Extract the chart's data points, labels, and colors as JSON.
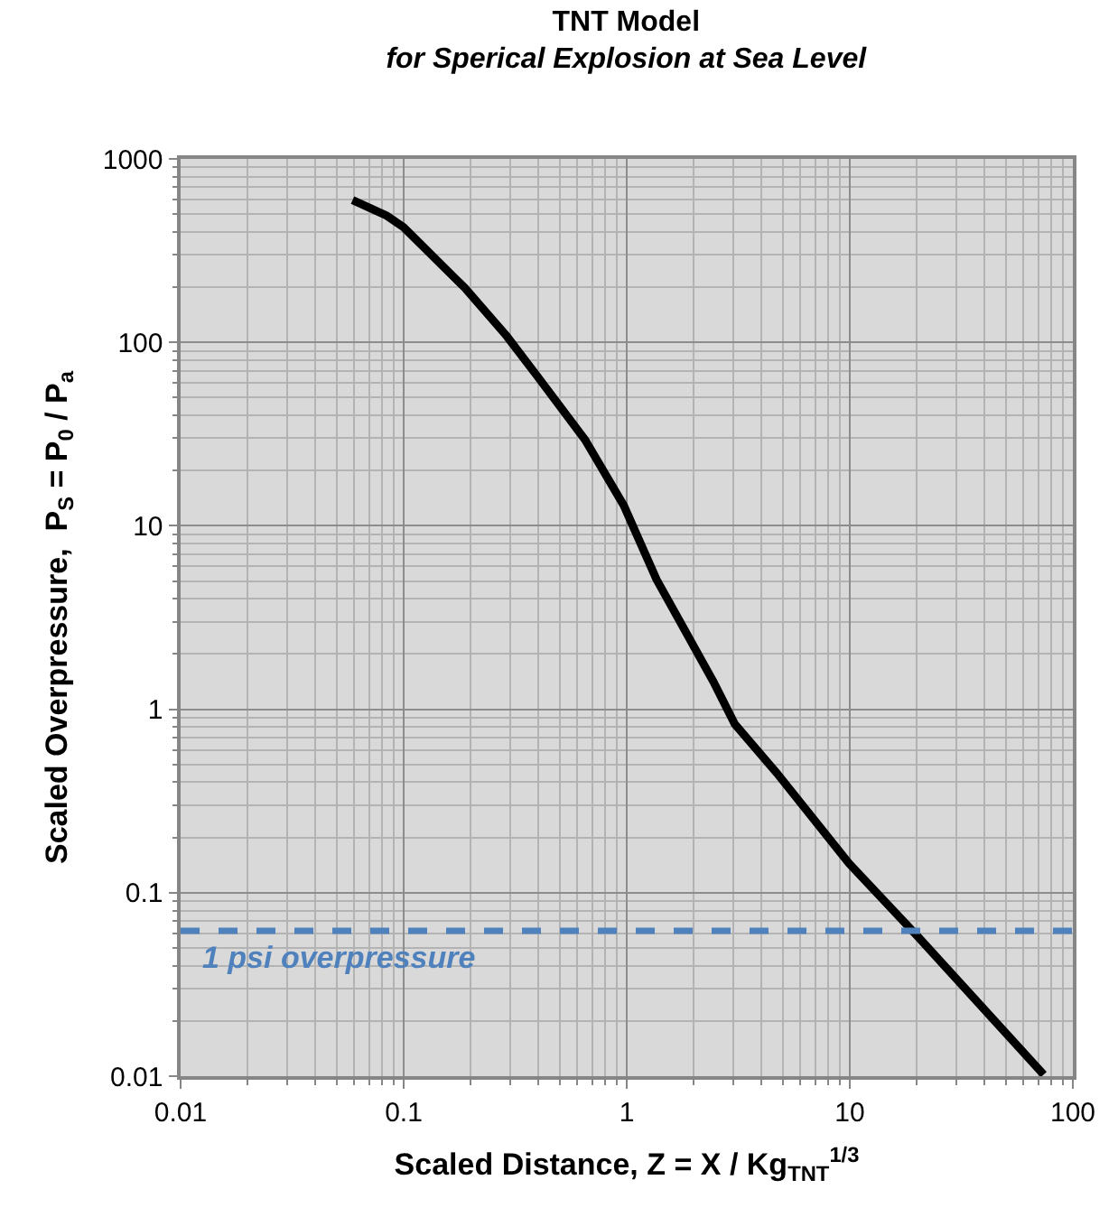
{
  "chart_data": {
    "type": "line",
    "title": "TNT Model",
    "subtitle": "for Sperical Explosion at Sea Level",
    "xlabel": "Scaled Distance, Z = X / Kg$_{TNT}$$^{1/3}$",
    "ylabel": "Scaled Overpressure,  P$_{S}$ = P$_{0}$ / P$_{a}$",
    "log": "xy",
    "grid": true,
    "marker": "none",
    "line_style": "solid",
    "xlim": [
      0.01,
      100
    ],
    "ylim": [
      0.01,
      1000
    ],
    "xticks": [
      0.01,
      0.1,
      1,
      10,
      100
    ],
    "yticks": [
      0.01,
      0.1,
      1,
      10,
      100,
      1000
    ],
    "series": [
      {
        "color": "#000000",
        "x": [
          0.059,
          0.084,
          0.1,
          0.188,
          0.29,
          0.395,
          0.65,
          0.97,
          1.36,
          2.45,
          3.05,
          4.7,
          9.9,
          20.1,
          74
        ],
        "values": [
          596,
          490,
          424,
          198,
          108,
          66,
          29.5,
          12.9,
          5.1,
          1.41,
          0.83,
          0.45,
          0.145,
          0.058,
          0.0102
        ]
      }
    ],
    "ref_lines": [
      {
        "axis": "y",
        "value": 0.062,
        "label": "1 psi overpressure",
        "color": "#4f81bd",
        "line_style": "dashed"
      }
    ]
  }
}
